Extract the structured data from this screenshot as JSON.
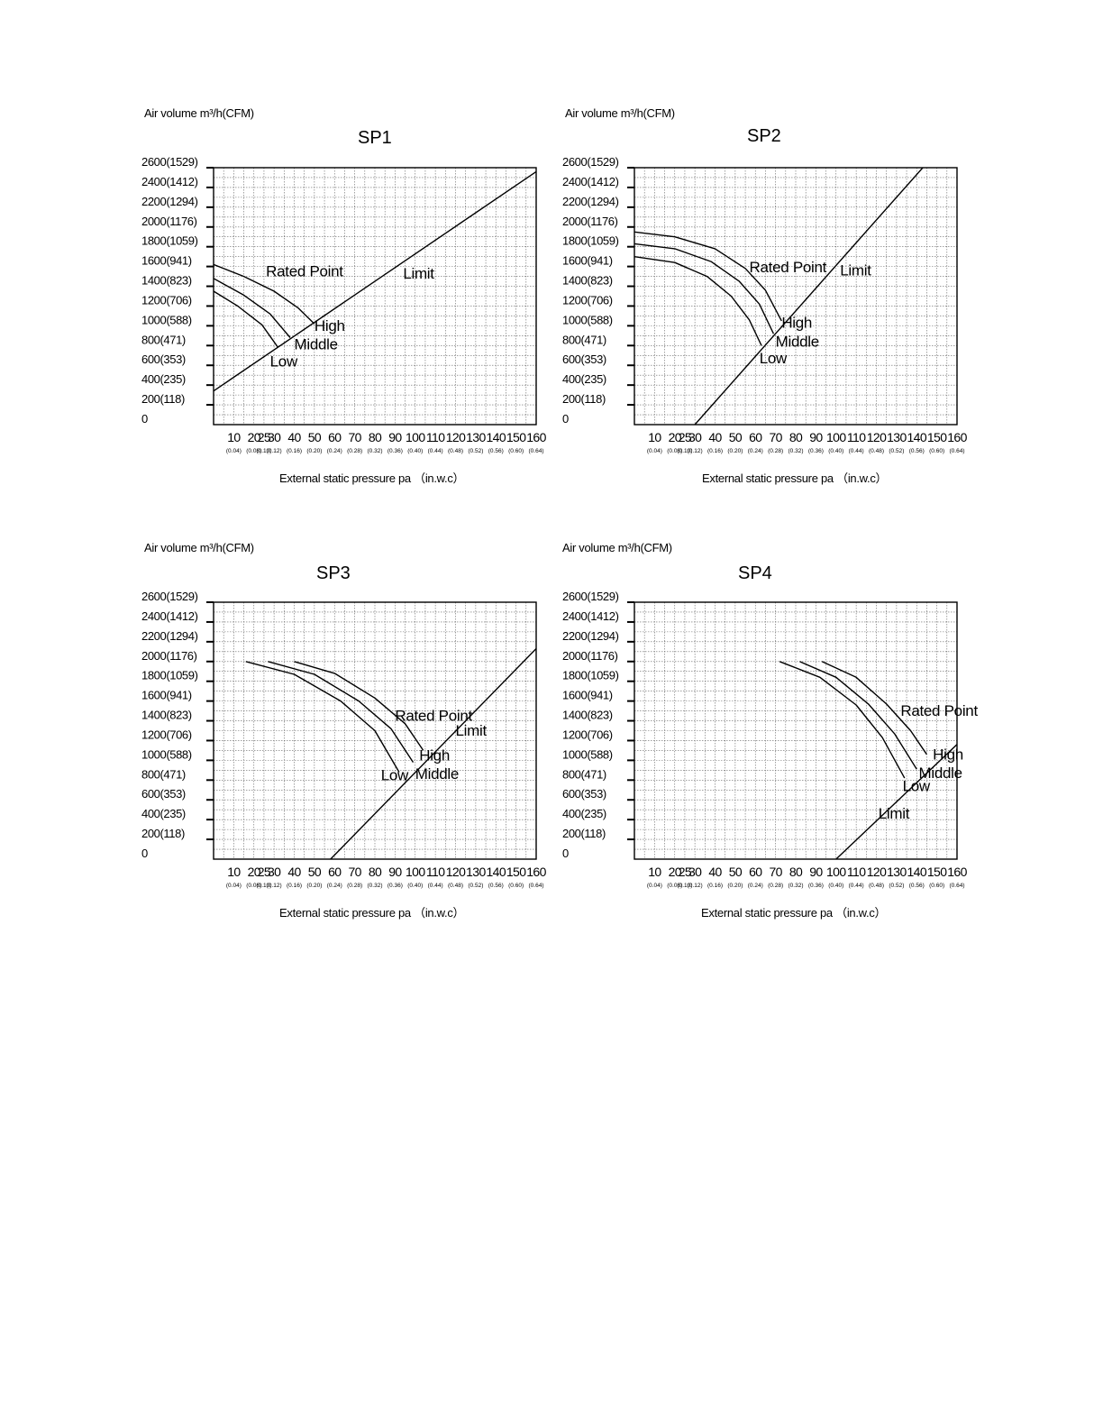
{
  "chart_data": [
    {
      "type": "line",
      "title": "SP1",
      "ylabel": "Air volume m³/h(CFM)",
      "xlabel": "External static pressure pa （in.w.c）",
      "xlim": [
        0,
        160
      ],
      "ylim": [
        0,
        2600
      ],
      "y_ticks": [
        {
          "value": 2600,
          "label": "2600(1529)"
        },
        {
          "value": 2400,
          "label": "2400(1412)"
        },
        {
          "value": 2200,
          "label": "2200(1294)"
        },
        {
          "value": 2000,
          "label": "2000(1176)"
        },
        {
          "value": 1800,
          "label": "1800(1059)"
        },
        {
          "value": 1600,
          "label": "1600(941)"
        },
        {
          "value": 1400,
          "label": "1400(823)"
        },
        {
          "value": 1200,
          "label": "1200(706)"
        },
        {
          "value": 1000,
          "label": "1000(588)"
        },
        {
          "value": 800,
          "label": "800(471)"
        },
        {
          "value": 600,
          "label": "600(353)"
        },
        {
          "value": 400,
          "label": "400(235)"
        },
        {
          "value": 200,
          "label": "200(118)"
        },
        {
          "value": 0,
          "label": "0"
        }
      ],
      "x_ticks": [
        {
          "value": 10,
          "label": "10",
          "sub": "(0.04)"
        },
        {
          "value": 20,
          "label": "20",
          "sub": "(0.08)"
        },
        {
          "value": 25,
          "label": "25",
          "sub": "(0.10)"
        },
        {
          "value": 30,
          "label": "30",
          "sub": "(0.12)"
        },
        {
          "value": 40,
          "label": "40",
          "sub": "(0.16)"
        },
        {
          "value": 50,
          "label": "50",
          "sub": "(0.20)"
        },
        {
          "value": 60,
          "label": "60",
          "sub": "(0.24)"
        },
        {
          "value": 70,
          "label": "70",
          "sub": "(0.28)"
        },
        {
          "value": 80,
          "label": "80",
          "sub": "(0.32)"
        },
        {
          "value": 90,
          "label": "90",
          "sub": "(0.36)"
        },
        {
          "value": 100,
          "label": "100",
          "sub": "(0.40)"
        },
        {
          "value": 110,
          "label": "110",
          "sub": "(0.44)"
        },
        {
          "value": 120,
          "label": "120",
          "sub": "(0.48)"
        },
        {
          "value": 130,
          "label": "130",
          "sub": "(0.52)"
        },
        {
          "value": 140,
          "label": "140",
          "sub": "(0.56)"
        },
        {
          "value": 150,
          "label": "150",
          "sub": "(0.60)"
        },
        {
          "value": 160,
          "label": "160",
          "sub": "(0.64)"
        }
      ],
      "series": [
        {
          "name": "High",
          "x": [
            0,
            15,
            30,
            42,
            50
          ],
          "y": [
            1620,
            1500,
            1350,
            1180,
            1020
          ]
        },
        {
          "name": "Middle",
          "x": [
            0,
            15,
            28,
            38
          ],
          "y": [
            1480,
            1310,
            1120,
            880
          ]
        },
        {
          "name": "Low",
          "x": [
            0,
            12,
            24,
            32
          ],
          "y": [
            1350,
            1200,
            1010,
            780
          ]
        },
        {
          "name": "Limit",
          "x": [
            0,
            160
          ],
          "y": [
            340,
            2560
          ]
        }
      ],
      "annotations": [
        {
          "text": "Rated Point",
          "x": 26,
          "y": 1500
        },
        {
          "text": "Limit",
          "x": 94,
          "y": 1480
        },
        {
          "text": "High",
          "x": 50,
          "y": 950
        },
        {
          "text": "Middle",
          "x": 40,
          "y": 760
        },
        {
          "text": "Low",
          "x": 28,
          "y": 590
        }
      ],
      "grid": true
    },
    {
      "type": "line",
      "title": "SP2",
      "ylabel": "Air volume m³/h(CFM)",
      "xlabel": "External static pressure pa （in.w.c）",
      "xlim": [
        0,
        160
      ],
      "ylim": [
        0,
        2600
      ],
      "y_ticks": [
        {
          "value": 2600,
          "label": "2600(1529)"
        },
        {
          "value": 2400,
          "label": "2400(1412)"
        },
        {
          "value": 2200,
          "label": "2200(1294)"
        },
        {
          "value": 2000,
          "label": "2000(1176)"
        },
        {
          "value": 1800,
          "label": "1800(1059)"
        },
        {
          "value": 1600,
          "label": "1600(941)"
        },
        {
          "value": 1400,
          "label": "1400(823)"
        },
        {
          "value": 1200,
          "label": "1200(706)"
        },
        {
          "value": 1000,
          "label": "1000(588)"
        },
        {
          "value": 800,
          "label": "800(471)"
        },
        {
          "value": 600,
          "label": "600(353)"
        },
        {
          "value": 400,
          "label": "400(235)"
        },
        {
          "value": 200,
          "label": "200(118)"
        },
        {
          "value": 0,
          "label": "0"
        }
      ],
      "x_ticks": [
        {
          "value": 10,
          "label": "10",
          "sub": "(0.04)"
        },
        {
          "value": 20,
          "label": "20",
          "sub": "(0.08)"
        },
        {
          "value": 25,
          "label": "25",
          "sub": "(0.10)"
        },
        {
          "value": 30,
          "label": "30",
          "sub": "(0.12)"
        },
        {
          "value": 40,
          "label": "40",
          "sub": "(0.16)"
        },
        {
          "value": 50,
          "label": "50",
          "sub": "(0.20)"
        },
        {
          "value": 60,
          "label": "60",
          "sub": "(0.24)"
        },
        {
          "value": 70,
          "label": "70",
          "sub": "(0.28)"
        },
        {
          "value": 80,
          "label": "80",
          "sub": "(0.32)"
        },
        {
          "value": 90,
          "label": "90",
          "sub": "(0.36)"
        },
        {
          "value": 100,
          "label": "100",
          "sub": "(0.40)"
        },
        {
          "value": 110,
          "label": "110",
          "sub": "(0.44)"
        },
        {
          "value": 120,
          "label": "120",
          "sub": "(0.48)"
        },
        {
          "value": 130,
          "label": "130",
          "sub": "(0.52)"
        },
        {
          "value": 140,
          "label": "140",
          "sub": "(0.56)"
        },
        {
          "value": 150,
          "label": "150",
          "sub": "(0.60)"
        },
        {
          "value": 160,
          "label": "160",
          "sub": "(0.64)"
        }
      ],
      "series": [
        {
          "name": "High",
          "x": [
            0,
            20,
            40,
            55,
            65,
            73
          ],
          "y": [
            1950,
            1900,
            1780,
            1580,
            1360,
            1050
          ]
        },
        {
          "name": "Middle",
          "x": [
            0,
            20,
            38,
            52,
            62,
            69
          ],
          "y": [
            1830,
            1780,
            1650,
            1450,
            1220,
            920
          ]
        },
        {
          "name": "Low",
          "x": [
            0,
            20,
            36,
            48,
            57,
            63
          ],
          "y": [
            1700,
            1640,
            1500,
            1300,
            1060,
            800
          ]
        },
        {
          "name": "Limit",
          "x": [
            30,
            143
          ],
          "y": [
            0,
            2600
          ]
        }
      ],
      "annotations": [
        {
          "text": "Rated Point",
          "x": 57,
          "y": 1540
        },
        {
          "text": "Limit",
          "x": 102,
          "y": 1510
        },
        {
          "text": "High",
          "x": 73,
          "y": 980
        },
        {
          "text": "Middle",
          "x": 70,
          "y": 790
        },
        {
          "text": "Low",
          "x": 62,
          "y": 620
        }
      ],
      "grid": true
    },
    {
      "type": "line",
      "title": "SP3",
      "ylabel": "Air volume m³/h(CFM)",
      "xlabel": "External static pressure pa （in.w.c）",
      "xlim": [
        0,
        160
      ],
      "ylim": [
        0,
        2600
      ],
      "y_ticks": [
        {
          "value": 2600,
          "label": "2600(1529)"
        },
        {
          "value": 2400,
          "label": "2400(1412)"
        },
        {
          "value": 2200,
          "label": "2200(1294)"
        },
        {
          "value": 2000,
          "label": "2000(1176)"
        },
        {
          "value": 1800,
          "label": "1800(1059)"
        },
        {
          "value": 1600,
          "label": "1600(941)"
        },
        {
          "value": 1400,
          "label": "1400(823)"
        },
        {
          "value": 1200,
          "label": "1200(706)"
        },
        {
          "value": 1000,
          "label": "1000(588)"
        },
        {
          "value": 800,
          "label": "800(471)"
        },
        {
          "value": 600,
          "label": "600(353)"
        },
        {
          "value": 400,
          "label": "400(235)"
        },
        {
          "value": 200,
          "label": "200(118)"
        },
        {
          "value": 0,
          "label": "0"
        }
      ],
      "x_ticks": [
        {
          "value": 10,
          "label": "10",
          "sub": "(0.04)"
        },
        {
          "value": 20,
          "label": "20",
          "sub": "(0.08)"
        },
        {
          "value": 25,
          "label": "25",
          "sub": "(0.10)"
        },
        {
          "value": 30,
          "label": "30",
          "sub": "(0.12)"
        },
        {
          "value": 40,
          "label": "40",
          "sub": "(0.16)"
        },
        {
          "value": 50,
          "label": "50",
          "sub": "(0.20)"
        },
        {
          "value": 60,
          "label": "60",
          "sub": "(0.24)"
        },
        {
          "value": 70,
          "label": "70",
          "sub": "(0.28)"
        },
        {
          "value": 80,
          "label": "80",
          "sub": "(0.32)"
        },
        {
          "value": 90,
          "label": "90",
          "sub": "(0.36)"
        },
        {
          "value": 100,
          "label": "100",
          "sub": "(0.40)"
        },
        {
          "value": 110,
          "label": "110",
          "sub": "(0.44)"
        },
        {
          "value": 120,
          "label": "120",
          "sub": "(0.48)"
        },
        {
          "value": 130,
          "label": "130",
          "sub": "(0.52)"
        },
        {
          "value": 140,
          "label": "140",
          "sub": "(0.56)"
        },
        {
          "value": 150,
          "label": "150",
          "sub": "(0.60)"
        },
        {
          "value": 160,
          "label": "160",
          "sub": "(0.64)"
        }
      ],
      "series": [
        {
          "name": "High",
          "x": [
            40,
            60,
            80,
            95,
            104
          ],
          "y": [
            2000,
            1880,
            1630,
            1370,
            1100
          ]
        },
        {
          "name": "Middle",
          "x": [
            27,
            50,
            72,
            88,
            99
          ],
          "y": [
            2000,
            1870,
            1600,
            1320,
            980
          ]
        },
        {
          "name": "Low",
          "x": [
            16,
            40,
            63,
            80,
            92
          ],
          "y": [
            2000,
            1870,
            1600,
            1300,
            880
          ]
        },
        {
          "name": "Limit",
          "x": [
            58,
            160
          ],
          "y": [
            0,
            2130
          ]
        }
      ],
      "annotations": [
        {
          "text": "Rated Point",
          "x": 90,
          "y": 1400
        },
        {
          "text": "Limit",
          "x": 120,
          "y": 1250
        },
        {
          "text": "High",
          "x": 102,
          "y": 1000
        },
        {
          "text": "Middle",
          "x": 100,
          "y": 810
        },
        {
          "text": "Low",
          "x": 83,
          "y": 800
        }
      ],
      "grid": true
    },
    {
      "type": "line",
      "title": "SP4",
      "ylabel": "Air volume m³/h(CFM)",
      "xlabel": "External static pressure pa （in.w.c）",
      "xlim": [
        0,
        160
      ],
      "ylim": [
        0,
        2600
      ],
      "y_ticks": [
        {
          "value": 2600,
          "label": "2600(1529)"
        },
        {
          "value": 2400,
          "label": "2400(1412)"
        },
        {
          "value": 2200,
          "label": "2200(1294)"
        },
        {
          "value": 2000,
          "label": "2000(1176)"
        },
        {
          "value": 1800,
          "label": "1800(1059)"
        },
        {
          "value": 1600,
          "label": "1600(941)"
        },
        {
          "value": 1400,
          "label": "1400(823)"
        },
        {
          "value": 1200,
          "label": "1200(706)"
        },
        {
          "value": 1000,
          "label": "1000(588)"
        },
        {
          "value": 800,
          "label": "800(471)"
        },
        {
          "value": 600,
          "label": "600(353)"
        },
        {
          "value": 400,
          "label": "400(235)"
        },
        {
          "value": 200,
          "label": "200(118)"
        },
        {
          "value": 0,
          "label": "0"
        }
      ],
      "x_ticks": [
        {
          "value": 10,
          "label": "10",
          "sub": "(0.04)"
        },
        {
          "value": 20,
          "label": "20",
          "sub": "(0.08)"
        },
        {
          "value": 25,
          "label": "25",
          "sub": "(0.10)"
        },
        {
          "value": 30,
          "label": "30",
          "sub": "(0.12)"
        },
        {
          "value": 40,
          "label": "40",
          "sub": "(0.16)"
        },
        {
          "value": 50,
          "label": "50",
          "sub": "(0.20)"
        },
        {
          "value": 60,
          "label": "60",
          "sub": "(0.24)"
        },
        {
          "value": 70,
          "label": "70",
          "sub": "(0.28)"
        },
        {
          "value": 80,
          "label": "80",
          "sub": "(0.32)"
        },
        {
          "value": 90,
          "label": "90",
          "sub": "(0.36)"
        },
        {
          "value": 100,
          "label": "100",
          "sub": "(0.40)"
        },
        {
          "value": 110,
          "label": "110",
          "sub": "(0.44)"
        },
        {
          "value": 120,
          "label": "120",
          "sub": "(0.48)"
        },
        {
          "value": 130,
          "label": "130",
          "sub": "(0.52)"
        },
        {
          "value": 140,
          "label": "140",
          "sub": "(0.56)"
        },
        {
          "value": 150,
          "label": "150",
          "sub": "(0.60)"
        },
        {
          "value": 160,
          "label": "160",
          "sub": "(0.64)"
        }
      ],
      "series": [
        {
          "name": "High",
          "x": [
            93,
            110,
            125,
            137,
            145
          ],
          "y": [
            2000,
            1840,
            1570,
            1300,
            1060
          ]
        },
        {
          "name": "Middle",
          "x": [
            82,
            100,
            116,
            129,
            140
          ],
          "y": [
            2000,
            1840,
            1570,
            1270,
            910
          ]
        },
        {
          "name": "Low",
          "x": [
            72,
            92,
            110,
            123,
            134
          ],
          "y": [
            2000,
            1840,
            1560,
            1230,
            820
          ]
        },
        {
          "name": "Limit",
          "x": [
            100,
            160
          ],
          "y": [
            0,
            1160
          ]
        }
      ],
      "annotations": [
        {
          "text": "Rated Point",
          "x": 132,
          "y": 1450
        },
        {
          "text": "High",
          "x": 148,
          "y": 1010
        },
        {
          "text": "Middle",
          "x": 141,
          "y": 820
        },
        {
          "text": "Low",
          "x": 133,
          "y": 690
        },
        {
          "text": "Limit",
          "x": 121,
          "y": 410
        }
      ],
      "grid": true
    }
  ]
}
